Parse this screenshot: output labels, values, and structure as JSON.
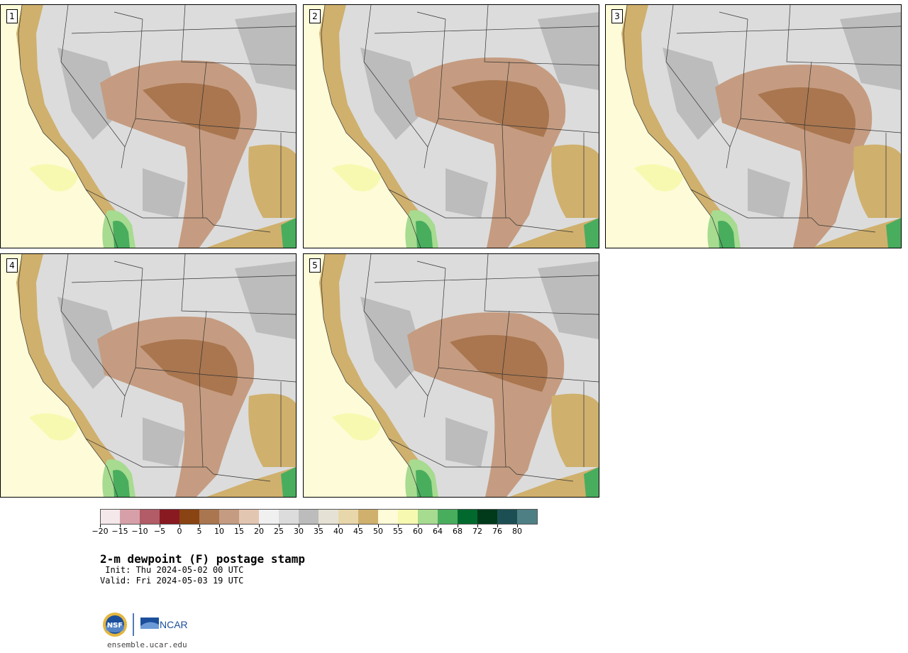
{
  "panels": [
    {
      "label": "1"
    },
    {
      "label": "2"
    },
    {
      "label": "3"
    },
    {
      "label": "4"
    },
    {
      "label": "5"
    }
  ],
  "colorbar": {
    "colors": [
      "#f4e8ea",
      "#d7a0a8",
      "#b15c66",
      "#8a1a22",
      "#8a4312",
      "#a9764f",
      "#c59c81",
      "#e3c6b1",
      "#f0f0f0",
      "#dcdcdc",
      "#bcbcbc",
      "#e5e2d5",
      "#e8d7ab",
      "#cfb06d",
      "#fdfbd8",
      "#f7f9b0",
      "#a6db90",
      "#49ad5e",
      "#02692e",
      "#003a1a",
      "#1c4f53",
      "#4e7f84"
    ],
    "ticks": [
      "−20",
      "−15",
      "−10",
      "−5",
      "0",
      "5",
      "10",
      "15",
      "20",
      "25",
      "30",
      "35",
      "40",
      "45",
      "50",
      "55",
      "60",
      "64",
      "68",
      "72",
      "76",
      "80"
    ]
  },
  "map_colors": {
    "ocean": "#fdfbd8",
    "coast_tan": "#cfb06d",
    "light_tan": "#e8d7ab",
    "gray": "#bcbcbc",
    "light_gray": "#dcdcdc",
    "brown": "#c59c81",
    "dark_brown": "#a9764f",
    "green": "#49ad5e",
    "light_green": "#a6db90",
    "yellow": "#f7f9b0"
  },
  "title": "2-m dewpoint (F) postage stamp",
  "init_text": " Init: Thu 2024-05-02 00 UTC",
  "valid_text": "Valid: Fri 2024-05-03 19 UTC",
  "logos": {
    "nsf": "NSF",
    "ncar": "NCAR"
  },
  "site": "ensemble.ucar.edu"
}
